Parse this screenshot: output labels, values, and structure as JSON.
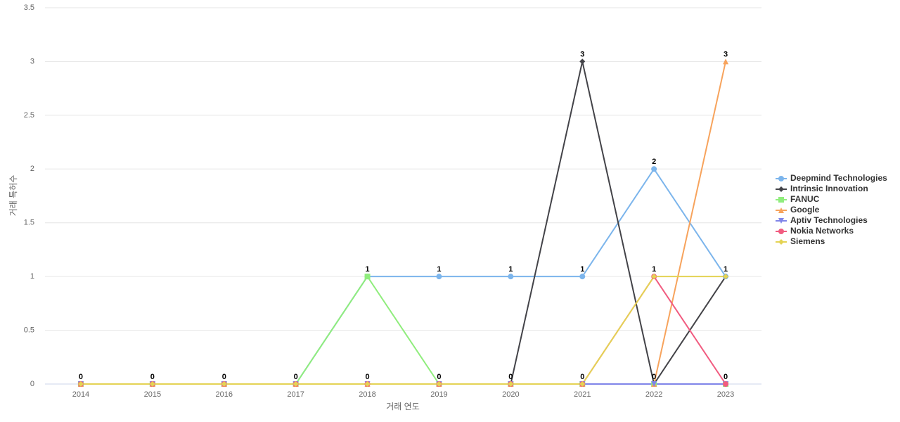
{
  "chart_data": {
    "type": "line",
    "x_label": "거래 연도",
    "y_label": "거래 특허수",
    "categories": [
      "2014",
      "2015",
      "2016",
      "2017",
      "2018",
      "2019",
      "2020",
      "2021",
      "2022",
      "2023"
    ],
    "ylim": [
      0,
      3.5
    ],
    "yticks": [
      0,
      0.5,
      1,
      1.5,
      2,
      2.5,
      3,
      3.5
    ],
    "grid": true,
    "legend": "right",
    "series": [
      {
        "name": "Deepmind Technologies",
        "color": "#7cb5ec",
        "symbol": "circle",
        "values": [
          0,
          0,
          0,
          0,
          1,
          1,
          1,
          1,
          2,
          1
        ]
      },
      {
        "name": "Intrinsic Innovation",
        "color": "#434348",
        "symbol": "diamond",
        "values": [
          0,
          0,
          0,
          0,
          0,
          0,
          0,
          3,
          0,
          1
        ]
      },
      {
        "name": "FANUC",
        "color": "#90ed7d",
        "symbol": "square",
        "values": [
          0,
          0,
          0,
          0,
          1,
          0,
          0,
          0,
          0,
          0
        ]
      },
      {
        "name": "Google",
        "color": "#f7a35c",
        "symbol": "triangle",
        "values": [
          0,
          0,
          0,
          0,
          0,
          0,
          0,
          0,
          0,
          3
        ]
      },
      {
        "name": "Aptiv Technologies",
        "color": "#8085e9",
        "symbol": "triangle-down",
        "values": [
          0,
          0,
          0,
          0,
          0,
          0,
          0,
          0,
          0,
          0
        ]
      },
      {
        "name": "Nokia Networks",
        "color": "#f15c80",
        "symbol": "circle",
        "values": [
          0,
          0,
          0,
          0,
          0,
          0,
          0,
          0,
          1,
          0
        ]
      },
      {
        "name": "Siemens",
        "color": "#e4d354",
        "symbol": "diamond",
        "values": [
          0,
          0,
          0,
          0,
          0,
          0,
          0,
          0,
          1,
          1
        ]
      }
    ]
  }
}
